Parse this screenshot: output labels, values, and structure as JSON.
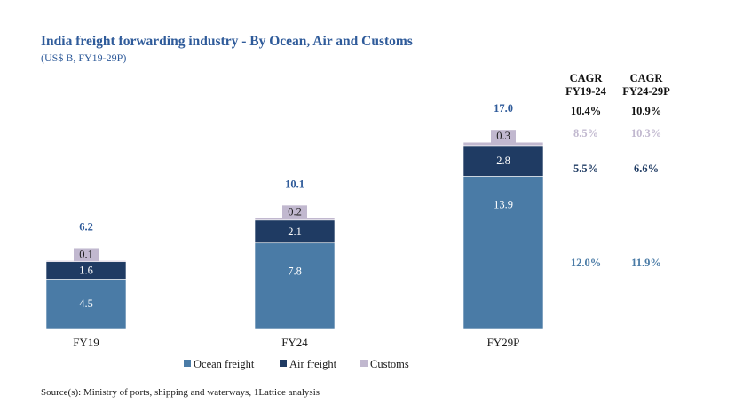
{
  "chart_data": {
    "type": "bar",
    "stacked": true,
    "title": "India freight forwarding industry - By Ocean, Air and Customs",
    "subtitle": "(US$ B, FY19-29P)",
    "categories": [
      "FY19",
      "FY24",
      "FY29P"
    ],
    "series": [
      {
        "name": "Ocean freight",
        "values": [
          4.5,
          7.8,
          13.9
        ],
        "color": "#4a7ba6",
        "label_color": "#ffffff"
      },
      {
        "name": "Air freight",
        "values": [
          1.6,
          2.1,
          2.8
        ],
        "color": "#1f3b63",
        "label_color": "#ffffff"
      },
      {
        "name": "Customs",
        "values": [
          0.1,
          0.2,
          0.3
        ],
        "color": "#c1b8cf",
        "label_color": "#1a1a1a"
      }
    ],
    "totals": [
      6.2,
      10.1,
      17.0
    ],
    "total_labels": [
      "6.2",
      "10.1",
      "17.0"
    ],
    "value_labels": [
      [
        "4.5",
        "7.8",
        "13.9"
      ],
      [
        "1.6",
        "2.1",
        "2.8"
      ],
      [
        "0.1",
        "0.2",
        "0.3"
      ]
    ],
    "total_color": "#2f5b9a",
    "ylim": [
      0,
      17.5
    ],
    "cagr": {
      "headers": [
        [
          "CAGR",
          "FY19-24"
        ],
        [
          "CAGR",
          "FY24-29P"
        ]
      ],
      "total": [
        "10.4%",
        "10.9%"
      ],
      "rows": [
        {
          "series": "Customs",
          "values": [
            "8.5%",
            "10.3%"
          ],
          "color": "#c1b8cf"
        },
        {
          "series": "Air freight",
          "values": [
            "5.5%",
            "6.6%"
          ],
          "color": "#1f3b63"
        },
        {
          "series": "Ocean freight",
          "values": [
            "12.0%",
            "11.9%"
          ],
          "color": "#4a7ba6"
        }
      ]
    },
    "legend_position": "bottom",
    "source": "Source(s): Ministry of ports, shipping and waterways, 1Lattice analysis"
  }
}
